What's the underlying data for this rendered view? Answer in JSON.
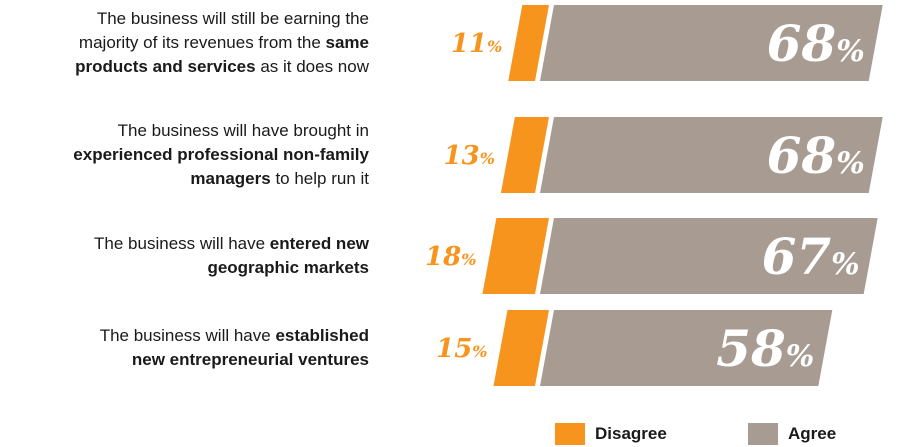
{
  "colors": {
    "disagree": "#f7941d",
    "agree": "#a89c92",
    "agree_text": "#ffffff",
    "disagree_text": "#f7941d"
  },
  "chart_data": {
    "type": "bar",
    "orientation": "horizontal",
    "categories": [
      "The business will still be earning the majority of its revenues from the same products and services as it does now",
      "The business will have brought in experienced professional non-family managers to help run it",
      "The business will have entered new geographic markets",
      "The business will have established new entrepreneurial ventures"
    ],
    "series": [
      {
        "name": "Disagree",
        "values": [
          11,
          13,
          18,
          15
        ],
        "labels": [
          "11",
          "13",
          "18",
          "15"
        ]
      },
      {
        "name": "Agree",
        "values": [
          68,
          68,
          67,
          58
        ],
        "labels": [
          "68",
          "68",
          "67",
          "58"
        ]
      }
    ],
    "unit": "%",
    "legend_position": "bottom-right"
  },
  "rows": [
    {
      "lines": [
        [
          {
            "t": "The business will still be earning the",
            "b": false
          }
        ],
        [
          {
            "t": "majority of its revenues from the ",
            "b": false
          },
          {
            "t": "same",
            "b": true
          }
        ],
        [
          {
            "t": "products and services",
            "b": true
          },
          {
            "t": " as it does now",
            "b": false
          }
        ]
      ]
    },
    {
      "lines": [
        [
          {
            "t": "The business will have brought in",
            "b": false
          }
        ],
        [
          {
            "t": "experienced professional non-family",
            "b": true
          }
        ],
        [
          {
            "t": "managers",
            "b": true
          },
          {
            "t": " to help run it",
            "b": false
          }
        ]
      ]
    },
    {
      "lines": [
        [
          {
            "t": "The business will have ",
            "b": false
          },
          {
            "t": "entered new",
            "b": true
          }
        ],
        [
          {
            "t": "geographic markets",
            "b": true
          }
        ]
      ]
    },
    {
      "lines": [
        [
          {
            "t": "The business will have ",
            "b": false
          },
          {
            "t": "established",
            "b": true
          }
        ],
        [
          {
            "t": "new entrepreneurial ventures",
            "b": true
          }
        ]
      ]
    }
  ],
  "legend": {
    "disagree_label": "Disagree",
    "agree_label": "Agree"
  }
}
